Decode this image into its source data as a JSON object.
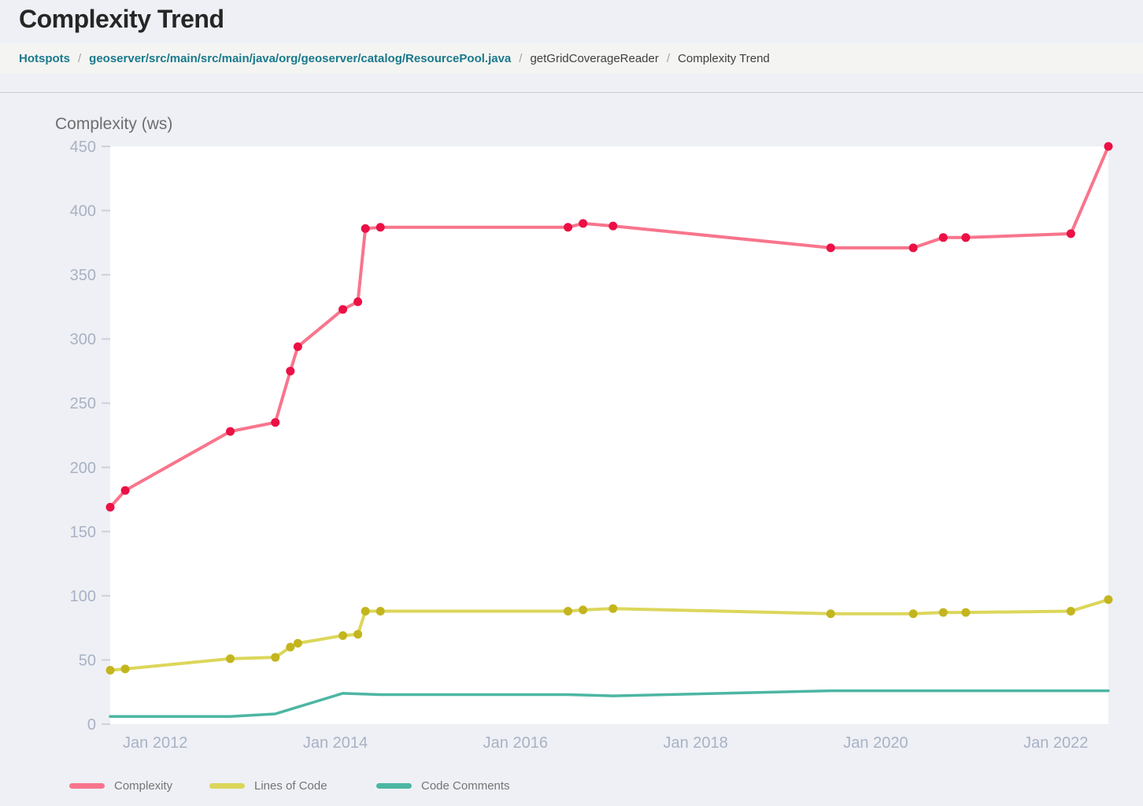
{
  "page": {
    "title": "Complexity Trend"
  },
  "breadcrumb": {
    "separator": "/",
    "items": [
      {
        "label": "Hotspots",
        "type": "link"
      },
      {
        "label": "geoserver/src/main/src/main/java/org/geoserver/catalog/ResourcePool.java",
        "type": "link"
      },
      {
        "label": "getGridCoverageReader",
        "type": "text"
      },
      {
        "label": "Complexity Trend",
        "type": "text"
      }
    ]
  },
  "colors": {
    "page_background": "#eef0f5",
    "breadcrumb_background": "#f4f4f2",
    "plot_background": "#ffffff",
    "link": "#19798b",
    "axis_label": "#a8b2c5",
    "axis_tick": "#ccd2db",
    "chart_title": "#6e6e6e",
    "complexity_line": "#f8758c",
    "complexity_marker": "#ec1045",
    "lines_of_code_line": "#dcd65b",
    "lines_of_code_marker": "#c3b51e",
    "code_comments_line": "#4cb6a3"
  },
  "chart_data": {
    "type": "line",
    "title": "Complexity (ws)",
    "grid": false,
    "legend_position": "bottom",
    "x_ticks": [
      "Jan 2012",
      "Jan 2014",
      "Jan 2016",
      "Jan 2018",
      "Jan 2020",
      "Jan 2022"
    ],
    "x_domain": [
      "2011-07",
      "2022-08"
    ],
    "ylim": [
      0,
      450
    ],
    "y_tick_step": 50,
    "y_ticks": [
      0,
      50,
      100,
      150,
      200,
      250,
      300,
      350,
      400,
      450
    ],
    "series": [
      {
        "name": "Complexity",
        "line_color": "#f8758c",
        "marker_color": "#ec1045",
        "markers": true,
        "points": [
          [
            "2011-07",
            169
          ],
          [
            "2011-09",
            182
          ],
          [
            "2012-11",
            228
          ],
          [
            "2013-05",
            235
          ],
          [
            "2013-07",
            275
          ],
          [
            "2013-08",
            294
          ],
          [
            "2014-02",
            323
          ],
          [
            "2014-04",
            329
          ],
          [
            "2014-05",
            386
          ],
          [
            "2014-07",
            387
          ],
          [
            "2016-08",
            387
          ],
          [
            "2016-10",
            390
          ],
          [
            "2017-02",
            388
          ],
          [
            "2019-07",
            371
          ],
          [
            "2020-06",
            371
          ],
          [
            "2020-10",
            379
          ],
          [
            "2021-01",
            379
          ],
          [
            "2022-03",
            382
          ],
          [
            "2022-08",
            450
          ]
        ]
      },
      {
        "name": "Lines of Code",
        "line_color": "#dcd65b",
        "marker_color": "#c3b51e",
        "markers": true,
        "points": [
          [
            "2011-07",
            42
          ],
          [
            "2011-09",
            43
          ],
          [
            "2012-11",
            51
          ],
          [
            "2013-05",
            52
          ],
          [
            "2013-07",
            60
          ],
          [
            "2013-08",
            63
          ],
          [
            "2014-02",
            69
          ],
          [
            "2014-04",
            70
          ],
          [
            "2014-05",
            88
          ],
          [
            "2014-07",
            88
          ],
          [
            "2016-08",
            88
          ],
          [
            "2016-10",
            89
          ],
          [
            "2017-02",
            90
          ],
          [
            "2019-07",
            86
          ],
          [
            "2020-06",
            86
          ],
          [
            "2020-10",
            87
          ],
          [
            "2021-01",
            87
          ],
          [
            "2022-03",
            88
          ],
          [
            "2022-08",
            97
          ]
        ]
      },
      {
        "name": "Code Comments",
        "line_color": "#4cb6a3",
        "markers": false,
        "points": [
          [
            "2011-07",
            6
          ],
          [
            "2012-11",
            6
          ],
          [
            "2013-05",
            8
          ],
          [
            "2014-02",
            24
          ],
          [
            "2014-07",
            23
          ],
          [
            "2016-08",
            23
          ],
          [
            "2017-02",
            22
          ],
          [
            "2019-07",
            26
          ],
          [
            "2022-08",
            26
          ]
        ]
      }
    ]
  }
}
